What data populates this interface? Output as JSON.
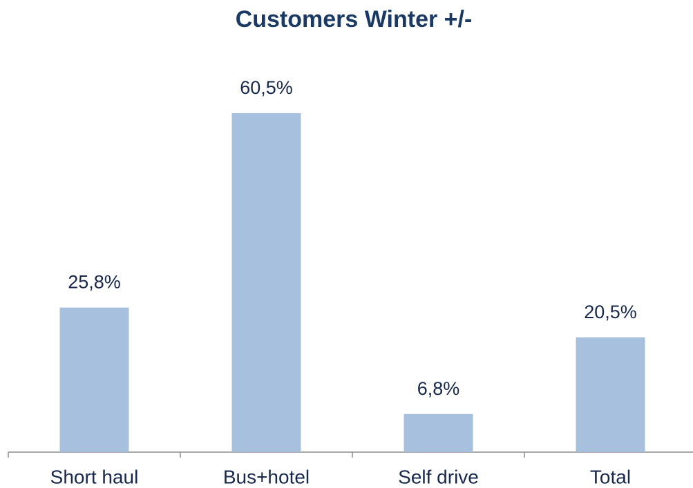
{
  "chart_data": {
    "type": "bar",
    "title": "Customers Winter +/-",
    "categories": [
      "Short haul",
      "Bus+hotel",
      "Self drive",
      "Total"
    ],
    "values": [
      25.8,
      60.5,
      6.8,
      20.5
    ],
    "value_labels": [
      "25,8%",
      "60,5%",
      "6,8%",
      "20,5%"
    ],
    "color": "#a7c0de"
  }
}
